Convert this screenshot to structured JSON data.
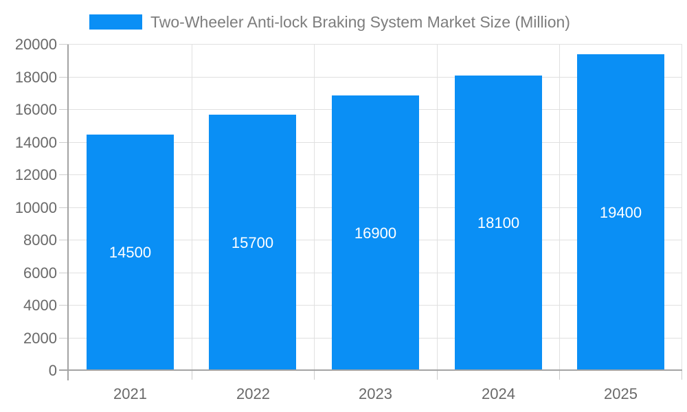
{
  "chart_data": {
    "type": "bar",
    "title": "Two-Wheeler Anti-lock Braking System Market Size (Million)",
    "legend_entries": [
      "Two-Wheeler Anti-lock Braking System Market Size (Million)"
    ],
    "legend_position": "top",
    "categories": [
      "2021",
      "2022",
      "2023",
      "2024",
      "2025"
    ],
    "values": [
      14500,
      15700,
      16900,
      18100,
      19400
    ],
    "bar_value_labels": [
      "14500",
      "15700",
      "16900",
      "18100",
      "19400"
    ],
    "xlabel": "",
    "ylabel": "",
    "ylim": [
      0,
      20000
    ],
    "ytick_step": 2000,
    "yticks": [
      0,
      2000,
      4000,
      6000,
      8000,
      10000,
      12000,
      14000,
      16000,
      18000,
      20000
    ],
    "grid": true
  },
  "colors": {
    "bar": "#0A8FF5",
    "gridline": "#e0e0e0",
    "tick_stub": "#cccccc",
    "axis": "#a3a3a3",
    "tick_label": "#696969",
    "legend_text": "#7d7d7d",
    "bar_label": "#ffffff",
    "background": "#ffffff"
  }
}
